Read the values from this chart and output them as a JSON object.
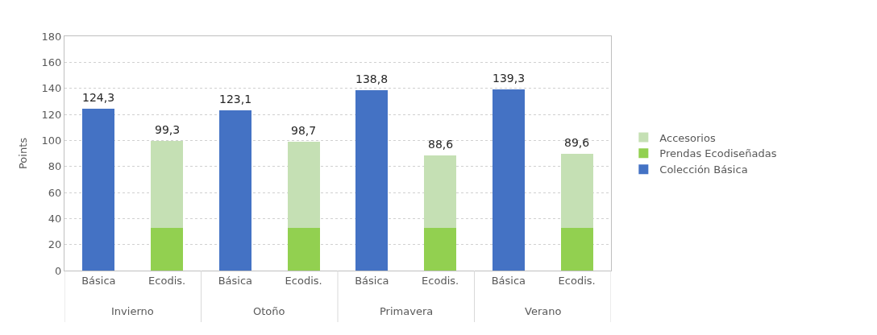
{
  "chart_data": {
    "type": "bar",
    "ylabel": "Points",
    "stacked": true,
    "categories": [
      "Básica",
      "Ecodis.",
      "Básica",
      "Ecodis.",
      "Básica",
      "Ecodis.",
      "Básica",
      "Ecodis."
    ],
    "annotations": [
      "Invierno",
      "Otoño",
      "Primavera",
      "Verano"
    ],
    "series": [
      {
        "name": "Colección Básica",
        "color": "#4472c4",
        "values": [
          124.3,
          null,
          123.1,
          null,
          138.8,
          null,
          139.3,
          null
        ]
      },
      {
        "name": "Prendas Ecodiseñadas",
        "color": "#92d050",
        "values": [
          null,
          33,
          null,
          33,
          null,
          33,
          null,
          33
        ]
      },
      {
        "name": "Accesorios",
        "color": "#c5e0b4",
        "values": [
          null,
          66.3,
          null,
          65.7,
          null,
          55.6,
          null,
          56.6
        ]
      }
    ],
    "totals": [
      "124,3",
      "99,3",
      "123,1",
      "98,7",
      "138,8",
      "88,6",
      "139,3",
      "89,6"
    ],
    "ylim": [
      0,
      180
    ],
    "yticks": [
      0,
      20,
      40,
      60,
      80,
      100,
      120,
      140,
      160,
      180
    ],
    "grid": "y",
    "legend": "right"
  }
}
